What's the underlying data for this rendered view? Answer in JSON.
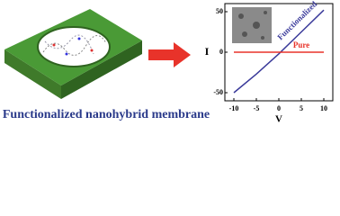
{
  "caption": "Functionalized nanohybrid membrane",
  "chart_data": {
    "type": "line",
    "xlabel": "V",
    "ylabel": "I",
    "x": [
      -10,
      -5,
      0,
      5,
      10
    ],
    "series": [
      {
        "name": "Functionalized",
        "color": "#3a3a9a",
        "values": [
          -50,
          -27,
          -2,
          25,
          52
        ]
      },
      {
        "name": "Pure",
        "color": "#e8332a",
        "values": [
          0,
          0,
          0,
          0,
          0
        ]
      }
    ],
    "xlim": [
      -12,
      12
    ],
    "ylim": [
      -60,
      60
    ],
    "xticks": [
      -10,
      -5,
      0,
      5,
      10
    ],
    "yticks": [
      -50,
      0,
      50
    ]
  }
}
